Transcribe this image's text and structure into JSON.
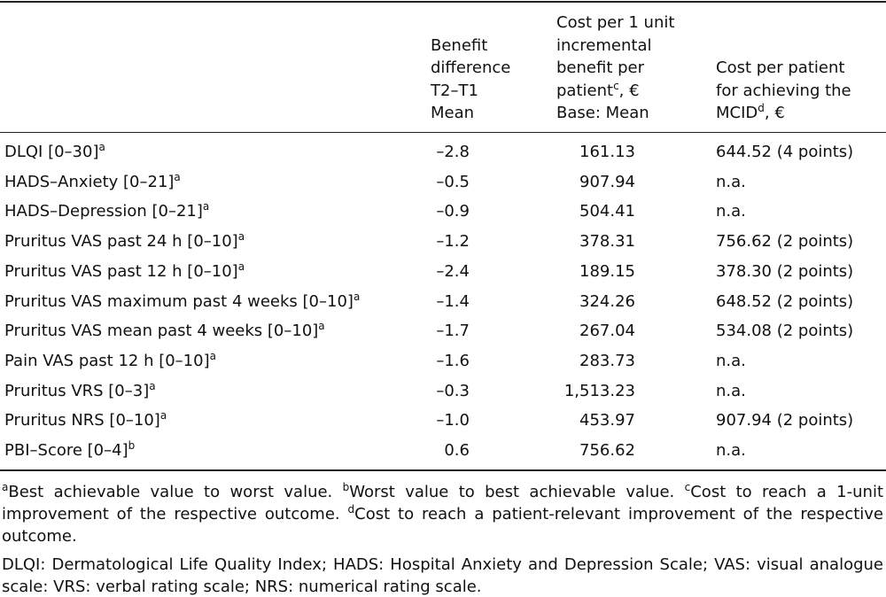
{
  "table": {
    "header": [
      {
        "lines": [
          "Benefit",
          "difference",
          "T2–T1",
          "Mean"
        ]
      },
      {
        "lines": [
          "Cost per 1 unit",
          "incremental",
          "benefit per",
          {
            "text": "patient",
            "sup": "c",
            "tail": ", €"
          },
          "Base: Mean"
        ]
      },
      {
        "lines": [
          "Cost per patient",
          "for achieving the",
          {
            "text": "MCID",
            "sup": "d",
            "tail": ", €"
          }
        ]
      }
    ],
    "rows": [
      {
        "label": "DLQI [0–30]",
        "note": "a",
        "benefit": "–2.8",
        "cost": "161.13",
        "mcid": "644.52 (4 points)"
      },
      {
        "label": "HADS–Anxiety [0–21]",
        "note": "a",
        "benefit": "–0.5",
        "cost": "907.94",
        "mcid": "n.a."
      },
      {
        "label": "HADS–Depression [0–21]",
        "note": "a",
        "benefit": "–0.9",
        "cost": "504.41",
        "mcid": "n.a."
      },
      {
        "label": "Pruritus VAS past 24 h [0–10]",
        "note": "a",
        "benefit": "–1.2",
        "cost": "378.31",
        "mcid": "756.62 (2 points)"
      },
      {
        "label": "Pruritus VAS past 12 h [0–10]",
        "note": "a",
        "benefit": "–2.4",
        "cost": "189.15",
        "mcid": "378.30 (2 points)"
      },
      {
        "label": "Pruritus VAS maximum past 4 weeks [0–10]",
        "note": "a",
        "benefit": "–1.4",
        "cost": "324.26",
        "mcid": "648.52 (2 points)"
      },
      {
        "label": "Pruritus VAS mean past 4 weeks [0–10]",
        "note": "a",
        "benefit": "–1.7",
        "cost": "267.04",
        "mcid": "534.08 (2 points)"
      },
      {
        "label": "Pain VAS past 12 h [0–10]",
        "note": "a",
        "benefit": "–1.6",
        "cost": "283.73",
        "mcid": "n.a."
      },
      {
        "label": "Pruritus VRS [0–3]",
        "note": "a",
        "benefit": "–0.3",
        "cost": "1,513.23",
        "mcid": "n.a."
      },
      {
        "label": "Pruritus NRS [0–10]",
        "note": "a",
        "benefit": "–1.0",
        "cost": "453.97",
        "mcid": "907.94 (2 points)"
      },
      {
        "label": "PBI–Score [0–4]",
        "note": "b",
        "benefit": "0.6",
        "cost": "756.62",
        "mcid": "n.a."
      }
    ]
  },
  "footnotes": [
    {
      "parts": [
        {
          "sup": "a"
        },
        {
          "text": "Best achievable value to worst value. "
        },
        {
          "sup": "b"
        },
        {
          "text": "Worst value to best achievable value. "
        },
        {
          "sup": "c"
        },
        {
          "text": "Cost to reach a 1-unit improvement of the respective outcome. "
        },
        {
          "sup": "d"
        },
        {
          "text": "Cost to reach a patient-relevant improvement of the respective outcome."
        }
      ]
    },
    {
      "parts": [
        {
          "text": "DLQI: Dermatological Life Quality Index; HADS: Hospital Anxiety and Depression Scale; VAS: visual analogue scale: VRS: verbal rating scale; NRS: numerical rating scale."
        }
      ]
    }
  ]
}
